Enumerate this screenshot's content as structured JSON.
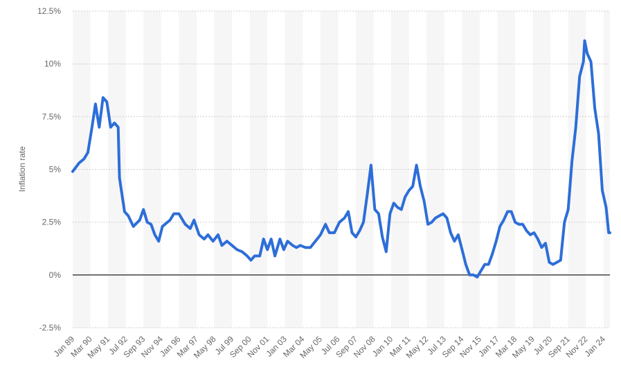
{
  "chart_data": {
    "type": "line",
    "ylabel": "Inflation rate",
    "xlabel": "",
    "y_ticks": [
      "12.5%",
      "10%",
      "7.5%",
      "5%",
      "2.5%",
      "0%",
      "-2.5%"
    ],
    "y_tick_values": [
      12.5,
      10,
      7.5,
      5,
      2.5,
      0,
      -2.5
    ],
    "ylim": [
      -2.5,
      12.5
    ],
    "x_ticks": [
      "Jan 89",
      "Mar 90",
      "May 91",
      "Jul 92",
      "Sep 93",
      "Nov 94",
      "Jan 96",
      "Mar 97",
      "May 98",
      "Jul 99",
      "Sep 00",
      "Nov 01",
      "Jan 03",
      "Mar 04",
      "May 05",
      "Jul 06",
      "Sep 07",
      "Nov 08",
      "Jan 10",
      "Mar 11",
      "May 12",
      "Jul 13",
      "Sep 14",
      "Nov 15",
      "Jan 17",
      "Mar 18",
      "May 19",
      "Jul 20",
      "Sep 21",
      "Nov 22",
      "Jan 24"
    ],
    "x_start": "1989-01",
    "x_end": "2024-06",
    "grid": true,
    "series": [
      {
        "points": [
          [
            "1989-01",
            4.9
          ],
          [
            "1989-06",
            5.3
          ],
          [
            "1989-10",
            5.5
          ],
          [
            "1990-01",
            5.8
          ],
          [
            "1990-04",
            6.9
          ],
          [
            "1990-07",
            8.1
          ],
          [
            "1990-10",
            7.0
          ],
          [
            "1991-01",
            8.4
          ],
          [
            "1991-04",
            8.2
          ],
          [
            "1991-07",
            7.0
          ],
          [
            "1991-10",
            7.2
          ],
          [
            "1992-01",
            7.0
          ],
          [
            "1992-02",
            4.6
          ],
          [
            "1992-06",
            3.0
          ],
          [
            "1992-09",
            2.8
          ],
          [
            "1993-01",
            2.3
          ],
          [
            "1993-06",
            2.6
          ],
          [
            "1993-09",
            3.1
          ],
          [
            "1993-12",
            2.5
          ],
          [
            "1994-03",
            2.4
          ],
          [
            "1994-06",
            1.9
          ],
          [
            "1994-09",
            1.6
          ],
          [
            "1994-12",
            2.3
          ],
          [
            "1995-06",
            2.6
          ],
          [
            "1995-09",
            2.9
          ],
          [
            "1996-01",
            2.9
          ],
          [
            "1996-06",
            2.4
          ],
          [
            "1996-10",
            2.2
          ],
          [
            "1997-01",
            2.6
          ],
          [
            "1997-05",
            1.9
          ],
          [
            "1997-09",
            1.7
          ],
          [
            "1997-12",
            1.9
          ],
          [
            "1998-04",
            1.6
          ],
          [
            "1998-08",
            1.9
          ],
          [
            "1998-11",
            1.4
          ],
          [
            "1999-03",
            1.6
          ],
          [
            "1999-07",
            1.4
          ],
          [
            "1999-11",
            1.2
          ],
          [
            "2000-03",
            1.1
          ],
          [
            "2000-07",
            0.9
          ],
          [
            "2000-10",
            0.7
          ],
          [
            "2001-01",
            0.9
          ],
          [
            "2001-05",
            0.9
          ],
          [
            "2001-08",
            1.7
          ],
          [
            "2001-11",
            1.2
          ],
          [
            "2002-02",
            1.7
          ],
          [
            "2002-05",
            0.9
          ],
          [
            "2002-09",
            1.7
          ],
          [
            "2002-12",
            1.2
          ],
          [
            "2003-03",
            1.6
          ],
          [
            "2003-07",
            1.4
          ],
          [
            "2003-10",
            1.3
          ],
          [
            "2004-01",
            1.4
          ],
          [
            "2004-05",
            1.3
          ],
          [
            "2004-09",
            1.3
          ],
          [
            "2005-01",
            1.6
          ],
          [
            "2005-05",
            1.9
          ],
          [
            "2005-09",
            2.4
          ],
          [
            "2005-12",
            2.0
          ],
          [
            "2006-04",
            2.0
          ],
          [
            "2006-08",
            2.5
          ],
          [
            "2006-12",
            2.7
          ],
          [
            "2007-03",
            3.0
          ],
          [
            "2007-06",
            2.0
          ],
          [
            "2007-09",
            1.8
          ],
          [
            "2007-12",
            2.1
          ],
          [
            "2008-03",
            2.5
          ],
          [
            "2008-06",
            3.8
          ],
          [
            "2008-09",
            5.2
          ],
          [
            "2008-12",
            3.1
          ],
          [
            "2009-03",
            2.9
          ],
          [
            "2009-06",
            1.8
          ],
          [
            "2009-09",
            1.1
          ],
          [
            "2009-12",
            2.9
          ],
          [
            "2010-03",
            3.4
          ],
          [
            "2010-06",
            3.2
          ],
          [
            "2010-09",
            3.1
          ],
          [
            "2010-12",
            3.7
          ],
          [
            "2011-03",
            4.0
          ],
          [
            "2011-06",
            4.2
          ],
          [
            "2011-09",
            5.2
          ],
          [
            "2011-12",
            4.2
          ],
          [
            "2012-03",
            3.5
          ],
          [
            "2012-06",
            2.4
          ],
          [
            "2012-09",
            2.5
          ],
          [
            "2012-12",
            2.7
          ],
          [
            "2013-03",
            2.8
          ],
          [
            "2013-06",
            2.9
          ],
          [
            "2013-09",
            2.7
          ],
          [
            "2013-12",
            2.0
          ],
          [
            "2014-03",
            1.6
          ],
          [
            "2014-06",
            1.9
          ],
          [
            "2014-09",
            1.2
          ],
          [
            "2014-12",
            0.5
          ],
          [
            "2015-03",
            0.0
          ],
          [
            "2015-06",
            0.0
          ],
          [
            "2015-09",
            -0.1
          ],
          [
            "2015-12",
            0.2
          ],
          [
            "2016-03",
            0.5
          ],
          [
            "2016-06",
            0.5
          ],
          [
            "2016-09",
            1.0
          ],
          [
            "2016-12",
            1.6
          ],
          [
            "2017-03",
            2.3
          ],
          [
            "2017-06",
            2.6
          ],
          [
            "2017-09",
            3.0
          ],
          [
            "2017-12",
            3.0
          ],
          [
            "2018-03",
            2.5
          ],
          [
            "2018-06",
            2.4
          ],
          [
            "2018-09",
            2.4
          ],
          [
            "2018-12",
            2.1
          ],
          [
            "2019-03",
            1.9
          ],
          [
            "2019-06",
            2.0
          ],
          [
            "2019-09",
            1.7
          ],
          [
            "2019-12",
            1.3
          ],
          [
            "2020-03",
            1.5
          ],
          [
            "2020-06",
            0.6
          ],
          [
            "2020-09",
            0.5
          ],
          [
            "2020-12",
            0.6
          ],
          [
            "2021-03",
            0.7
          ],
          [
            "2021-06",
            2.5
          ],
          [
            "2021-09",
            3.1
          ],
          [
            "2021-12",
            5.4
          ],
          [
            "2022-03",
            7.0
          ],
          [
            "2022-06",
            9.4
          ],
          [
            "2022-09",
            10.1
          ],
          [
            "2022-10",
            11.1
          ],
          [
            "2022-12",
            10.5
          ],
          [
            "2023-03",
            10.1
          ],
          [
            "2023-06",
            7.9
          ],
          [
            "2023-09",
            6.7
          ],
          [
            "2023-12",
            4.0
          ],
          [
            "2024-03",
            3.2
          ],
          [
            "2024-05",
            2.0
          ],
          [
            "2024-06",
            2.0
          ]
        ]
      }
    ],
    "colors": {
      "line": "#2d6ed8",
      "band": "#f6f6f6",
      "grid": "#cccccc",
      "zero_line": "#333333",
      "text": "#666666"
    }
  }
}
